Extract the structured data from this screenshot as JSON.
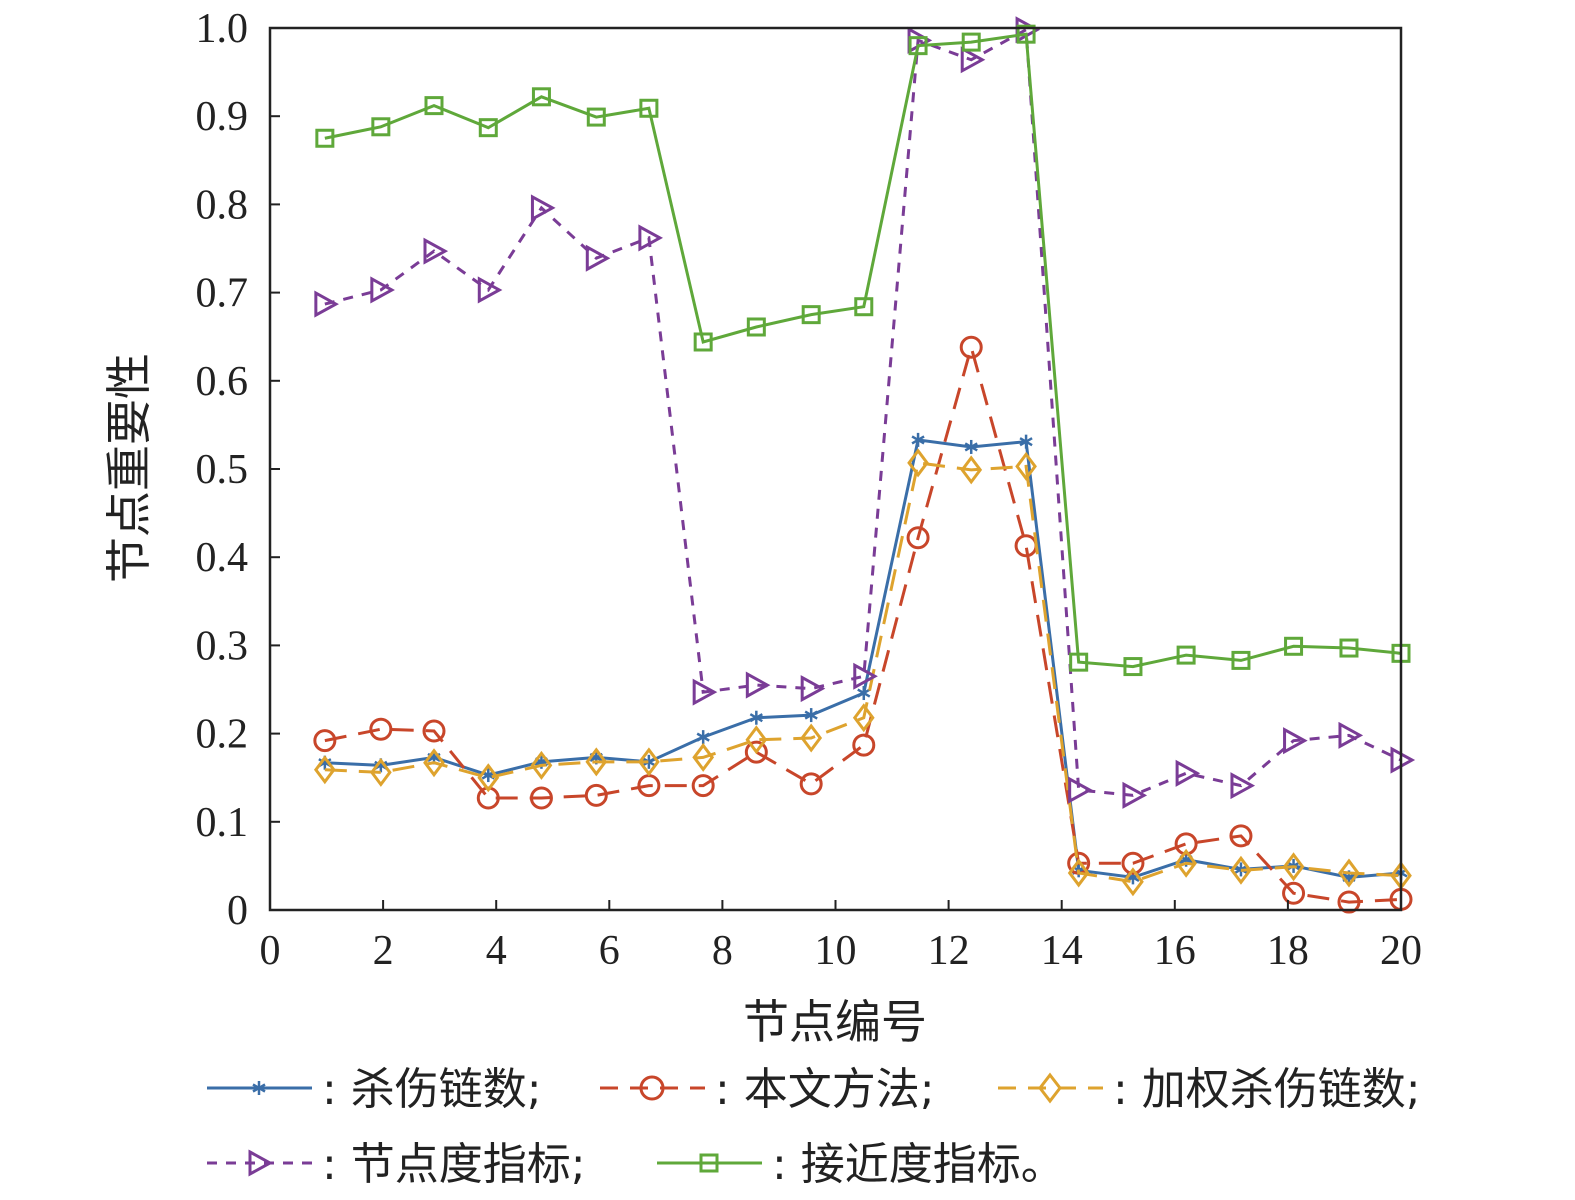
{
  "chart_data": {
    "type": "line",
    "title": "",
    "xlabel": "节点编号",
    "ylabel": "节点重要性",
    "xlim": [
      0,
      20
    ],
    "ylim": [
      0,
      1.0
    ],
    "xticks": [
      "0",
      "2",
      "4",
      "6",
      "8",
      "10",
      "12",
      "14",
      "16",
      "18",
      "20"
    ],
    "yticks": [
      "0",
      "0.1",
      "0.2",
      "0.3",
      "0.4",
      "0.5",
      "0.6",
      "0.7",
      "0.8",
      "0.9",
      "1.0"
    ],
    "grid": false,
    "legend_position": "bottom",
    "x": [
      0.97,
      1.96,
      2.9,
      3.86,
      4.8,
      5.77,
      6.7,
      7.66,
      8.6,
      9.57,
      10.5,
      11.46,
      12.4,
      13.37,
      14.3,
      15.26,
      16.2,
      17.17,
      18.1,
      19.08,
      20.0
    ],
    "series": [
      {
        "name": "杀伤链数;",
        "color": "#3a6ea8",
        "marker": "star",
        "dash": "none",
        "values": [
          0.167,
          0.164,
          0.173,
          0.153,
          0.168,
          0.173,
          0.168,
          0.196,
          0.218,
          0.221,
          0.246,
          0.533,
          0.525,
          0.531,
          0.045,
          0.037,
          0.057,
          0.046,
          0.05,
          0.037,
          0.042
        ]
      },
      {
        "name": "本文方法;",
        "color": "#c8462a",
        "marker": "circle",
        "dash": "long",
        "values": [
          0.192,
          0.205,
          0.203,
          0.127,
          0.127,
          0.13,
          0.141,
          0.141,
          0.179,
          0.143,
          0.187,
          0.422,
          0.638,
          0.413,
          0.053,
          0.053,
          0.075,
          0.084,
          0.019,
          0.009,
          0.012
        ]
      },
      {
        "name": "加权杀伤链数;",
        "color": "#dea32e",
        "marker": "diamond",
        "dash": "long",
        "values": [
          0.159,
          0.156,
          0.167,
          0.15,
          0.164,
          0.168,
          0.168,
          0.173,
          0.193,
          0.195,
          0.218,
          0.507,
          0.499,
          0.503,
          0.042,
          0.032,
          0.053,
          0.045,
          0.049,
          0.042,
          0.039
        ]
      },
      {
        "name": "节点度指标;",
        "color": "#7a3c96",
        "marker": "triangle-right",
        "dash": "short",
        "values": [
          0.687,
          0.703,
          0.747,
          0.703,
          0.796,
          0.739,
          0.762,
          0.247,
          0.255,
          0.251,
          0.265,
          0.986,
          0.964,
          0.998,
          0.136,
          0.13,
          0.155,
          0.141,
          0.192,
          0.198,
          0.17
        ]
      },
      {
        "name": "接近度指标。",
        "color": "#5fa83a",
        "marker": "square",
        "dash": "none",
        "values": [
          0.875,
          0.888,
          0.912,
          0.887,
          0.922,
          0.899,
          0.909,
          0.644,
          0.661,
          0.675,
          0.684,
          0.98,
          0.984,
          0.993,
          0.281,
          0.276,
          0.289,
          0.283,
          0.299,
          0.297,
          0.291
        ]
      }
    ]
  }
}
